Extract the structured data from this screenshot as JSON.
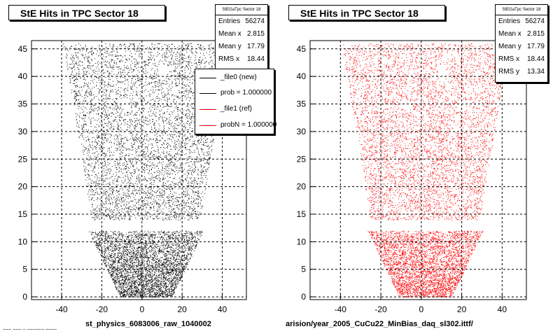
{
  "chart_data": [
    {
      "type": "scatter",
      "title": "StE Hits in TPC Sector 18",
      "xlabel": "st_physics_6083006_raw_1040002",
      "ylabel": "",
      "xlim": [
        -55,
        52
      ],
      "ylim": [
        -0.5,
        46.5
      ],
      "x_ticks": [
        -40,
        -20,
        0,
        20,
        40
      ],
      "y_ticks": [
        0,
        5,
        10,
        15,
        20,
        25,
        30,
        35,
        40,
        45
      ],
      "grid": true,
      "marker_color": "#000000",
      "density": "points concentrated between y=0 and y=12",
      "stats": {
        "name": "StEGaTpc Sector 18",
        "entries": {
          "label": "Entries",
          "value": "56274"
        },
        "mean_x": {
          "label": "Mean x",
          "value": "2.815"
        },
        "mean_y": {
          "label": "Mean y",
          "value": "17.79"
        },
        "rms_x": {
          "label": "RMS x",
          "value": "18.44"
        }
      },
      "legend": [
        {
          "label": "_file0 (new)",
          "color": "#000000"
        },
        {
          "label": "prob = 1.000000",
          "color": "#000000"
        },
        {
          "label": "_file1 (ref)",
          "color": "#ff0000"
        },
        {
          "label": "probN = 1.000000",
          "color": "#ff0000"
        }
      ],
      "legend_placement": "top-right"
    },
    {
      "type": "scatter",
      "title": "StE Hits in TPC Sector 18",
      "xlabel": "arision/year_2005_CuCu22_MinBias_daq_sl302.ittf/",
      "ylabel": "",
      "xlim": [
        -55,
        52
      ],
      "ylim": [
        -0.5,
        46.5
      ],
      "x_ticks": [
        -40,
        -20,
        0,
        20,
        40
      ],
      "y_ticks": [
        0,
        5,
        10,
        15,
        20,
        25,
        30,
        35,
        40,
        45
      ],
      "grid": true,
      "marker_color": "#ff0000",
      "density": "points concentrated between y=0 and y=12",
      "stats": {
        "name": "StEGaTpc Sector 18",
        "entries": {
          "label": "Entries",
          "value": "56274"
        },
        "mean_x": {
          "label": "Mean x",
          "value": "2.815"
        },
        "mean_y": {
          "label": "Mean y",
          "value": "17.79"
        },
        "rms_x": {
          "label": "RMS x",
          "value": "18.44"
        },
        "rms_y": {
          "label": "RMS y",
          "value": "13.34"
        }
      }
    }
  ],
  "cut_text": "~~~ ~~~ ~ ~~~~~~ ~~~~"
}
